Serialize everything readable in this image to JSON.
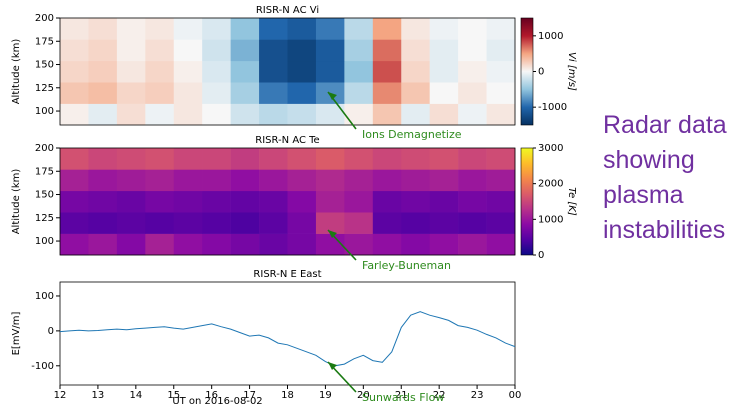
{
  "chart_data": [
    {
      "type": "heatmap",
      "title": "RISR-N AC Vi",
      "ylabel": "Altitude (km)",
      "colorbar_label": "Vi [m/s]",
      "colormap": "RdBu_r",
      "annotation": "Ions Demagnetize",
      "x": [
        12,
        12.75,
        13.5,
        14.25,
        15,
        15.75,
        16.5,
        17.25,
        18,
        18.75,
        19.5,
        20.25,
        21,
        21.75,
        22.5,
        23.25,
        24
      ],
      "y": [
        85,
        108,
        131,
        154,
        177,
        200
      ],
      "values": [
        [
          50,
          -100,
          150,
          -50,
          100,
          0,
          -200,
          -300,
          -250,
          -150,
          50,
          300,
          -100,
          150,
          -50,
          100
        ],
        [
          300,
          350,
          200,
          250,
          100,
          -100,
          -400,
          -900,
          -1000,
          -800,
          -300,
          600,
          300,
          0,
          100,
          0
        ],
        [
          200,
          250,
          100,
          200,
          50,
          -150,
          -500,
          -1200,
          -1300,
          -1100,
          -500,
          800,
          200,
          -100,
          50,
          -50
        ],
        [
          150,
          200,
          50,
          150,
          0,
          -200,
          -600,
          -1200,
          -1300,
          -1100,
          -400,
          700,
          150,
          -100,
          0,
          -100
        ],
        [
          100,
          150,
          50,
          100,
          -50,
          -150,
          -500,
          -1000,
          -1100,
          -900,
          -300,
          500,
          100,
          -50,
          0,
          -50
        ]
      ],
      "xlim": [
        12,
        24
      ],
      "ylim": [
        85,
        200
      ],
      "yticks": [
        100,
        125,
        150,
        175,
        200
      ],
      "clim": [
        -1500,
        1500
      ],
      "cticks": [
        -1000,
        0,
        1000
      ]
    },
    {
      "type": "heatmap",
      "title": "RISR-N AC Te",
      "ylabel": "Altitude (km)",
      "colorbar_label": "Te [K]",
      "colormap": "plasma",
      "annotation": "Farley-Buneman",
      "x": [
        12,
        12.75,
        13.5,
        14.25,
        15,
        15.75,
        16.5,
        17.25,
        18,
        18.75,
        19.5,
        20.25,
        21,
        21.75,
        22.5,
        23.25,
        24
      ],
      "y": [
        85,
        108,
        131,
        154,
        177,
        200
      ],
      "values": [
        [
          900,
          1000,
          800,
          1100,
          900,
          800,
          700,
          600,
          700,
          900,
          1000,
          900,
          800,
          900,
          1000,
          900
        ],
        [
          500,
          450,
          500,
          450,
          500,
          450,
          400,
          500,
          700,
          1400,
          1300,
          500,
          450,
          500,
          450,
          500
        ],
        [
          700,
          650,
          600,
          700,
          650,
          600,
          550,
          600,
          800,
          1100,
          1000,
          600,
          650,
          600,
          700,
          650
        ],
        [
          1100,
          1000,
          1050,
          1100,
          1000,
          1000,
          900,
          1000,
          1100,
          1200,
          1100,
          1000,
          1050,
          1100,
          1000,
          1050
        ],
        [
          1600,
          1500,
          1550,
          1600,
          1500,
          1500,
          1400,
          1500,
          1600,
          1700,
          1600,
          1500,
          1550,
          1600,
          1500,
          1550
        ]
      ],
      "xlim": [
        12,
        24
      ],
      "ylim": [
        85,
        200
      ],
      "yticks": [
        100,
        125,
        150,
        175,
        200
      ],
      "clim": [
        0,
        3000
      ],
      "cticks": [
        0,
        1000,
        2000,
        3000
      ]
    },
    {
      "type": "line",
      "title": "RISR-N E East",
      "xlabel": "UT on 2016-08-02",
      "ylabel": "E[mV/m]",
      "color": "#1f77b4",
      "annotation": "Sunwards Flow",
      "x": [
        12,
        12.25,
        12.5,
        12.75,
        13,
        13.25,
        13.5,
        13.75,
        14,
        14.25,
        14.5,
        14.75,
        15,
        15.25,
        15.5,
        15.75,
        16,
        16.25,
        16.5,
        16.75,
        17,
        17.25,
        17.5,
        17.75,
        18,
        18.25,
        18.5,
        18.75,
        19,
        19.25,
        19.5,
        19.75,
        20,
        20.25,
        20.5,
        20.75,
        21,
        21.25,
        21.5,
        21.75,
        22,
        22.25,
        22.5,
        22.75,
        23,
        23.25,
        23.5,
        23.75,
        24
      ],
      "values": [
        -2,
        0,
        2,
        0,
        1,
        3,
        5,
        3,
        6,
        8,
        10,
        12,
        8,
        5,
        10,
        15,
        20,
        12,
        5,
        -5,
        -15,
        -12,
        -20,
        -35,
        -40,
        -50,
        -60,
        -70,
        -88,
        -100,
        -95,
        -80,
        -70,
        -85,
        -90,
        -60,
        10,
        45,
        55,
        45,
        38,
        30,
        15,
        10,
        2,
        -10,
        -20,
        -35,
        -45
      ],
      "xlim": [
        12,
        24
      ],
      "ylim": [
        -155,
        140
      ],
      "xticks": [
        12,
        13,
        14,
        15,
        16,
        17,
        18,
        19,
        20,
        21,
        22,
        23,
        {
          "value": 24,
          "label": "00"
        }
      ],
      "yticks": [
        -100,
        0,
        100
      ]
    }
  ],
  "side_text": {
    "lines": [
      "Radar data",
      "showing",
      "plasma",
      "instabilities"
    ]
  }
}
